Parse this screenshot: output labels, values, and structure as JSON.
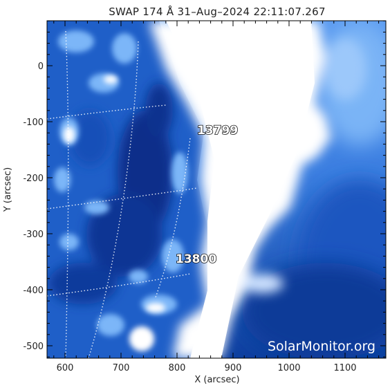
{
  "title": "SWAP 174 Å 31–Aug–2024 22:11:07.267",
  "xlabel": "X (arcsec)",
  "ylabel": "Y (arcsec)",
  "xticks": [
    "600",
    "700",
    "800",
    "900",
    "1000",
    "1100"
  ],
  "yticks": [
    "0",
    "-100",
    "-200",
    "-300",
    "-400",
    "-500"
  ],
  "regions": [
    {
      "label": "13799",
      "x": 850,
      "y": -115
    },
    {
      "label": "13800",
      "x": 835,
      "y": -340
    }
  ],
  "watermark": "SolarMonitor.org",
  "colors": {
    "deep_blue": "#0a3a9c",
    "mid_blue": "#3a7fe0",
    "bright": "#ffffff",
    "frame": "#000000"
  }
}
